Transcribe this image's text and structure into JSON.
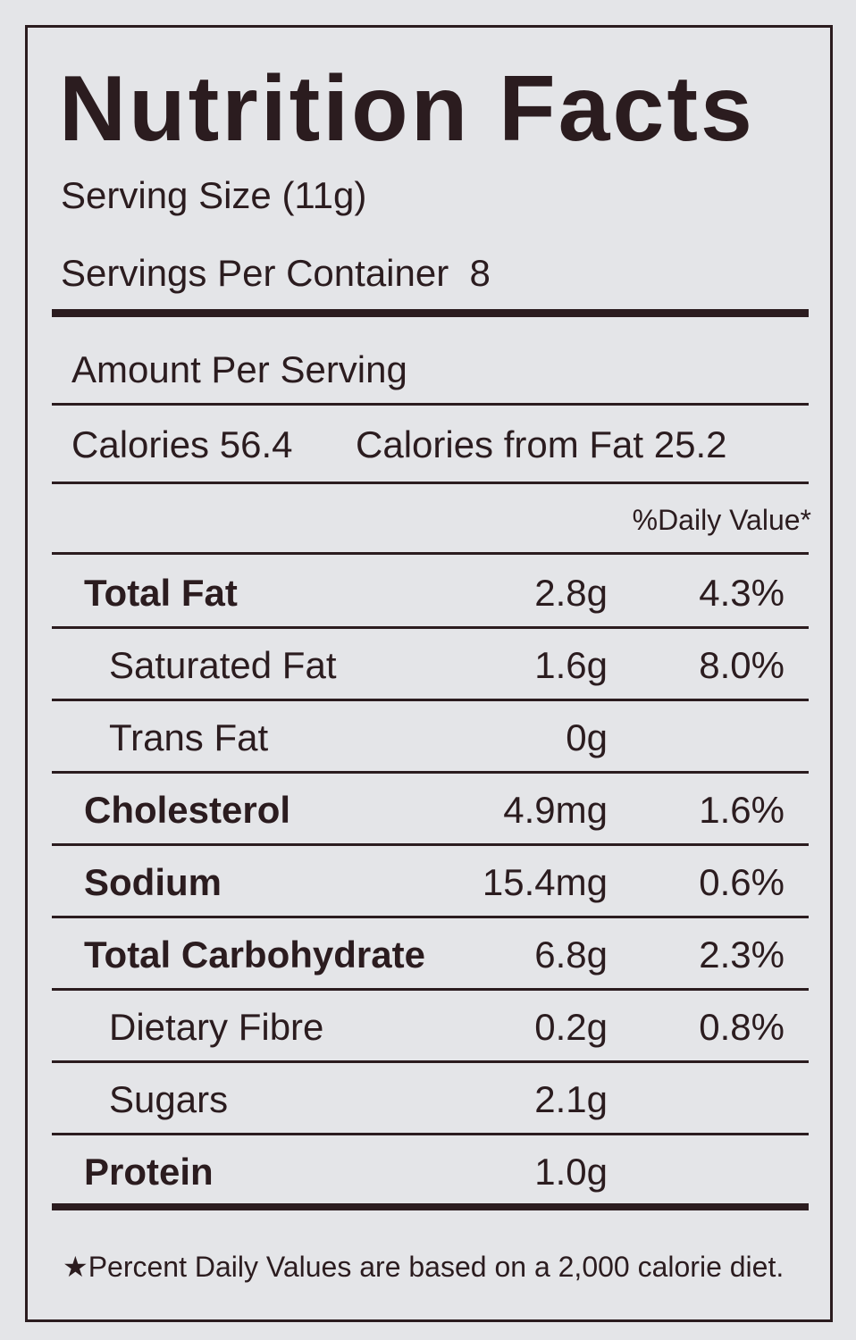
{
  "header": {
    "title": "Nutrition Facts",
    "serving_size": "Serving Size (11g)",
    "servings_per_container": "Servings Per Container  8"
  },
  "amount_per_serving": "Amount Per Serving",
  "calories": "Calories 56.4",
  "calories_from_fat": "Calories from Fat 25.2",
  "daily_value_header": "%Daily Value*",
  "rows": [
    {
      "name": "Total Fat",
      "amount": "2.8g",
      "dv": "4.3%",
      "sub_rows": [
        {
          "name": "Saturated Fat",
          "amount": "1.6g",
          "dv": "8.0%"
        },
        {
          "name": "Trans Fat",
          "amount": "0g"
        }
      ]
    },
    {
      "name": "Cholesterol",
      "amount": "4.9mg",
      "dv": "1.6%"
    },
    {
      "name": "Sodium",
      "amount": "15.4mg",
      "dv": "0.6%"
    },
    {
      "name": "Total Carbohydrate",
      "amount": "6.8g",
      "dv": "2.3%",
      "sub_rows": [
        {
          "name": "Dietary Fibre",
          "amount": "0.2g",
          "dv": "0.8%"
        },
        {
          "name": "Sugars",
          "amount": "2.1g"
        }
      ]
    },
    {
      "name": "Protein",
      "amount": "1.0g"
    }
  ],
  "footnote": "★Percent Daily Values are based on a 2,000 calorie diet."
}
